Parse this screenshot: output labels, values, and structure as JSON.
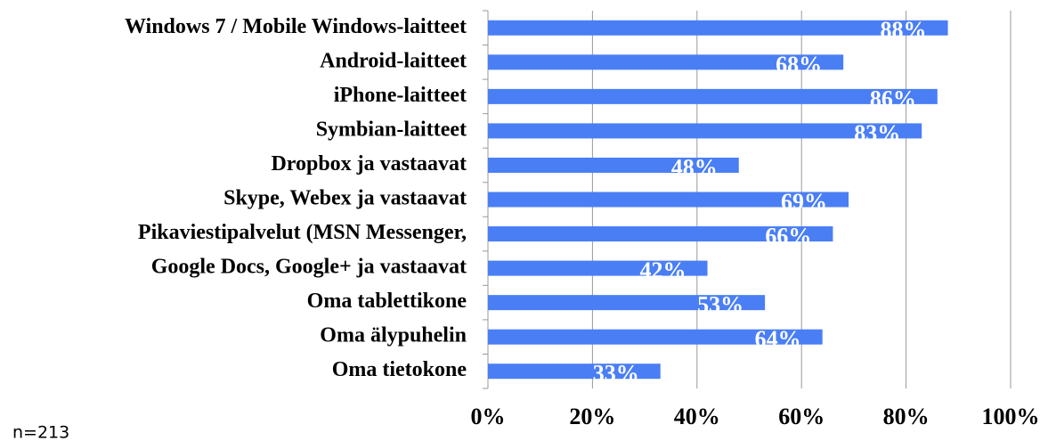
{
  "chart_data": {
    "type": "bar",
    "orientation": "horizontal",
    "categories": [
      "Windows 7 / Mobile Windows-laitteet",
      "Android-laitteet",
      "iPhone-laitteet",
      "Symbian-laitteet",
      "Dropbox ja vastaavat",
      "Skype, Webex ja vastaavat",
      "Pikaviestipalvelut (MSN Messenger,",
      "Google Docs, Google+ ja vastaavat",
      "Oma tablettikone",
      "Oma älypuhelin",
      "Oma tietokone"
    ],
    "values": [
      88,
      68,
      86,
      83,
      48,
      69,
      66,
      42,
      53,
      64,
      33
    ],
    "value_labels": [
      "88%",
      "68%",
      "86%",
      "83%",
      "48%",
      "69%",
      "66%",
      "42%",
      "53%",
      "64%",
      "33%"
    ],
    "color": "#4a7ef5",
    "xlim": [
      0,
      100
    ],
    "xticks": [
      {
        "value": 0,
        "label": "0%"
      },
      {
        "value": 20,
        "label": "20%"
      },
      {
        "value": 40,
        "label": "40%"
      },
      {
        "value": 60,
        "label": "60%"
      },
      {
        "value": 80,
        "label": "80%"
      },
      {
        "value": 100,
        "label": "100%"
      }
    ],
    "grid": true,
    "note": "n=213"
  }
}
